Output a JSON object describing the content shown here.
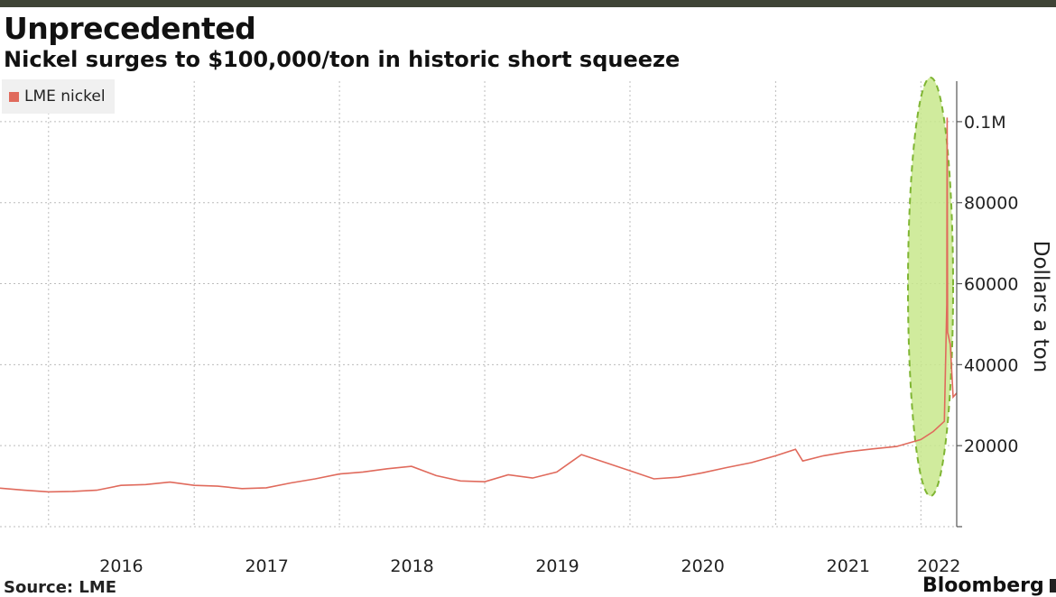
{
  "chart_data": {
    "type": "line",
    "title": "Unprecedented",
    "subtitle": "Nickel surges to $100,000/ton in historic short squeeze",
    "ylabel": "Dollars a ton",
    "xlabel": "",
    "x_tick_labels": [
      "2016",
      "2017",
      "2018",
      "2019",
      "2020",
      "2021",
      "2022"
    ],
    "y_ticks": [
      20000,
      40000,
      60000,
      80000,
      100000
    ],
    "y_tick_labels": [
      "20000",
      "40000",
      "60000",
      "80000",
      "0.1M"
    ],
    "ylim": [
      0,
      110000
    ],
    "xlim": [
      "2015-09-01",
      "2022-04-01"
    ],
    "grid": true,
    "legend_placement": "top-left",
    "source": "Source: LME",
    "brand": "Bloomberg",
    "annotation": "green dashed ellipse highlighting March 2022 spike",
    "series": [
      {
        "name": "LME nickel",
        "color": "#e06a5c",
        "points": [
          [
            "2015-09-01",
            9500
          ],
          [
            "2015-11-01",
            9000
          ],
          [
            "2016-01-01",
            8600
          ],
          [
            "2016-03-01",
            8700
          ],
          [
            "2016-05-01",
            9000
          ],
          [
            "2016-07-01",
            10200
          ],
          [
            "2016-09-01",
            10400
          ],
          [
            "2016-11-01",
            11000
          ],
          [
            "2017-01-01",
            10200
          ],
          [
            "2017-03-01",
            10000
          ],
          [
            "2017-05-01",
            9400
          ],
          [
            "2017-07-01",
            9600
          ],
          [
            "2017-09-01",
            10800
          ],
          [
            "2017-11-01",
            11800
          ],
          [
            "2018-01-01",
            13000
          ],
          [
            "2018-03-01",
            13500
          ],
          [
            "2018-05-01",
            14300
          ],
          [
            "2018-07-01",
            14900
          ],
          [
            "2018-09-01",
            12600
          ],
          [
            "2018-11-01",
            11300
          ],
          [
            "2019-01-01",
            11100
          ],
          [
            "2019-03-01",
            12800
          ],
          [
            "2019-05-01",
            12000
          ],
          [
            "2019-07-01",
            13500
          ],
          [
            "2019-09-01",
            17800
          ],
          [
            "2019-11-01",
            15800
          ],
          [
            "2020-01-01",
            13800
          ],
          [
            "2020-03-01",
            11800
          ],
          [
            "2020-05-01",
            12200
          ],
          [
            "2020-07-01",
            13300
          ],
          [
            "2020-09-01",
            14600
          ],
          [
            "2020-11-01",
            15800
          ],
          [
            "2021-01-01",
            17500
          ],
          [
            "2021-02-20",
            19100
          ],
          [
            "2021-03-10",
            16200
          ],
          [
            "2021-05-01",
            17500
          ],
          [
            "2021-07-01",
            18500
          ],
          [
            "2021-09-01",
            19200
          ],
          [
            "2021-11-01",
            19800
          ],
          [
            "2022-01-01",
            21500
          ],
          [
            "2022-02-01",
            23500
          ],
          [
            "2022-03-01",
            26000
          ],
          [
            "2022-03-07",
            55000
          ],
          [
            "2022-03-08",
            101000
          ],
          [
            "2022-03-09",
            48000
          ],
          [
            "2022-03-16",
            45000
          ],
          [
            "2022-03-23",
            32000
          ],
          [
            "2022-04-01",
            33000
          ]
        ]
      }
    ]
  }
}
